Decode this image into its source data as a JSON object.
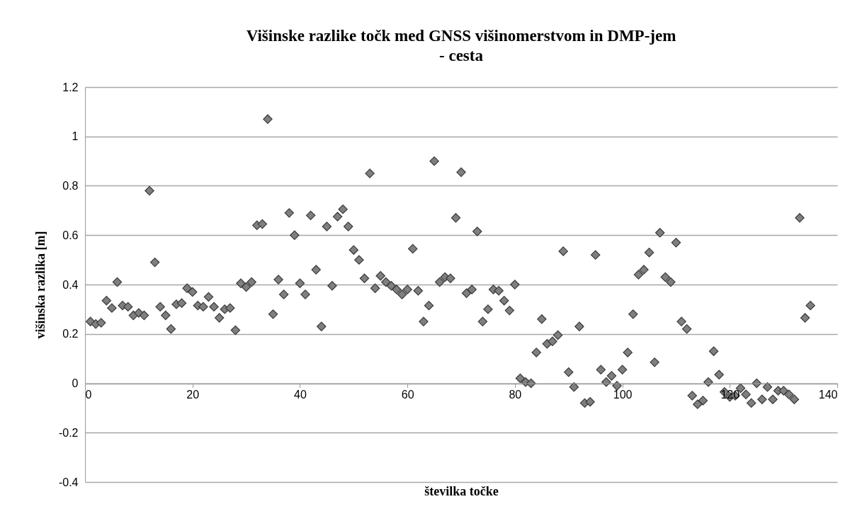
{
  "chart_data": {
    "type": "scatter",
    "title": "Višinske razlike točk med GNSS višinomerstvom in DMP-jem\n- cesta",
    "xlabel": "številka točke",
    "ylabel": "višinska razlika [m]",
    "x": [
      1,
      2,
      3,
      4,
      5,
      6,
      7,
      8,
      9,
      10,
      11,
      12,
      13,
      14,
      15,
      16,
      17,
      18,
      19,
      20,
      21,
      22,
      23,
      24,
      25,
      26,
      27,
      28,
      29,
      30,
      31,
      32,
      33,
      34,
      35,
      36,
      37,
      38,
      39,
      40,
      41,
      42,
      43,
      44,
      45,
      46,
      47,
      48,
      49,
      50,
      51,
      52,
      53,
      54,
      55,
      56,
      57,
      58,
      59,
      60,
      61,
      62,
      63,
      64,
      65,
      66,
      67,
      68,
      69,
      70,
      71,
      72,
      73,
      74,
      75,
      76,
      77,
      78,
      79,
      80,
      81,
      82,
      83,
      84,
      85,
      86,
      87,
      88,
      89,
      90,
      91,
      92,
      93,
      94,
      95,
      96,
      97,
      98,
      99,
      100,
      101,
      102,
      103,
      104,
      105,
      106,
      107,
      108,
      109,
      110,
      111,
      112,
      113,
      114,
      115,
      116,
      117,
      118,
      119,
      120,
      121,
      122,
      123,
      124,
      125,
      126,
      127,
      128,
      129,
      130,
      131,
      132,
      133,
      134,
      135
    ],
    "series": [
      {
        "color": "#7f7f7f",
        "values": [
          0.25,
          0.24,
          0.245,
          0.335,
          0.305,
          0.41,
          0.315,
          0.31,
          0.275,
          0.285,
          0.275,
          0.78,
          0.49,
          0.31,
          0.275,
          0.22,
          0.32,
          0.325,
          0.385,
          0.37,
          0.315,
          0.31,
          0.35,
          0.31,
          0.265,
          0.3,
          0.305,
          0.215,
          0.405,
          0.39,
          0.41,
          0.64,
          0.645,
          1.07,
          0.28,
          0.42,
          0.36,
          0.69,
          0.6,
          0.405,
          0.36,
          0.68,
          0.46,
          0.23,
          0.635,
          0.395,
          0.675,
          0.705,
          0.635,
          0.54,
          0.5,
          0.425,
          0.85,
          0.385,
          0.435,
          0.41,
          0.395,
          0.38,
          0.36,
          0.38,
          0.545,
          0.375,
          0.25,
          0.315,
          0.9,
          0.41,
          0.43,
          0.425,
          0.67,
          0.855,
          0.365,
          0.38,
          0.615,
          0.25,
          0.3,
          0.38,
          0.375,
          0.335,
          0.295,
          0.4,
          0.02,
          0.005,
          0.0,
          0.125,
          0.26,
          0.16,
          0.17,
          0.195,
          0.535,
          0.045,
          -0.015,
          0.23,
          -0.08,
          -0.075,
          0.52,
          0.055,
          0.005,
          0.03,
          -0.01,
          0.055,
          0.125,
          0.28,
          0.44,
          0.46,
          0.53,
          0.085,
          0.61,
          0.43,
          0.41,
          0.57,
          0.25,
          0.22,
          -0.05,
          -0.085,
          -0.07,
          0.005,
          0.13,
          0.035,
          -0.035,
          -0.055,
          -0.05,
          -0.02,
          -0.045,
          -0.08,
          0.0,
          -0.065,
          -0.015,
          -0.065,
          -0.03,
          -0.03,
          -0.045,
          -0.065,
          0.67,
          0.265,
          0.315
        ]
      }
    ],
    "xlim": [
      0,
      140
    ],
    "xticks": [
      0,
      20,
      40,
      60,
      80,
      100,
      120,
      140
    ],
    "ylim": [
      -0.4,
      1.2
    ],
    "yticks": [
      -0.4,
      -0.2,
      0,
      0.2,
      0.4,
      0.6,
      0.8,
      1,
      1.2
    ],
    "grid": "y",
    "marker": "diamond"
  }
}
